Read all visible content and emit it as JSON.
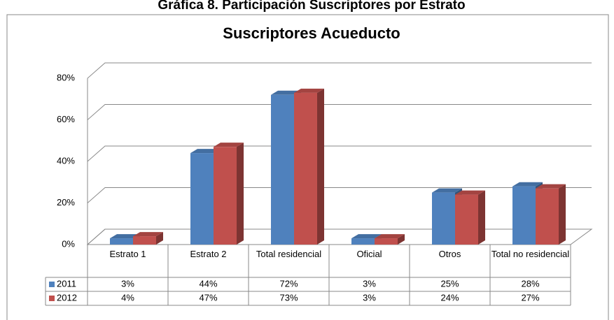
{
  "chart_data": {
    "type": "bar3d",
    "page_title": "Gráfica 8. Participación Suscriptores por Estrato",
    "title": "Suscriptores Acueducto",
    "categories": [
      "Estrato 1",
      "Estrato 2",
      "Total residencial",
      "Oficial",
      "Otros",
      "Total no residencial"
    ],
    "series": [
      {
        "name": "2011",
        "color": "#4f81bd",
        "values": [
          3,
          44,
          72,
          3,
          25,
          28
        ],
        "value_labels": [
          "3%",
          "44%",
          "72%",
          "3%",
          "25%",
          "28%"
        ]
      },
      {
        "name": "2012",
        "color": "#c0504d",
        "values": [
          4,
          47,
          73,
          3,
          24,
          27
        ],
        "value_labels": [
          "4%",
          "47%",
          "73%",
          "3%",
          "24%",
          "27%"
        ]
      }
    ],
    "ylim": [
      0,
      80
    ],
    "yticks": [
      {
        "value": 0,
        "label": "0%"
      },
      {
        "value": 20,
        "label": "20%"
      },
      {
        "value": 40,
        "label": "40%"
      },
      {
        "value": 60,
        "label": "60%"
      },
      {
        "value": 80,
        "label": "80%"
      }
    ],
    "grid": true
  }
}
